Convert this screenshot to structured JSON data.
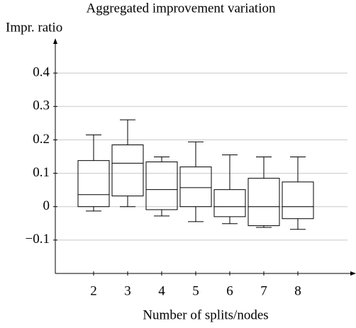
{
  "chart_data": {
    "type": "box",
    "title": "Aggregated improvement variation",
    "y_label": "Impr. ratio",
    "x_label": "Number of splits/nodes",
    "categories": [
      "2",
      "3",
      "4",
      "5",
      "6",
      "7",
      "8"
    ],
    "low": [
      -0.013,
      0,
      -0.028,
      -0.045,
      -0.051,
      -0.062,
      -0.068
    ],
    "q1": [
      0,
      0.032,
      -0.009,
      0,
      -0.03,
      -0.057,
      -0.036
    ],
    "median": [
      0.036,
      0.13,
      0.051,
      0.057,
      0,
      0,
      0
    ],
    "q3": [
      0.138,
      0.185,
      0.134,
      0.119,
      0.051,
      0.085,
      0.074
    ],
    "high": [
      0.215,
      0.26,
      0.149,
      0.194,
      0.155,
      0.149,
      0.149
    ],
    "color": "#000000",
    "ylim": [
      -0.2,
      0.5
    ],
    "yticks": [
      {
        "value": -0.1,
        "label": "−0.1"
      },
      0,
      0.1,
      0.2,
      0.3,
      0.4
    ],
    "grid": true
  }
}
